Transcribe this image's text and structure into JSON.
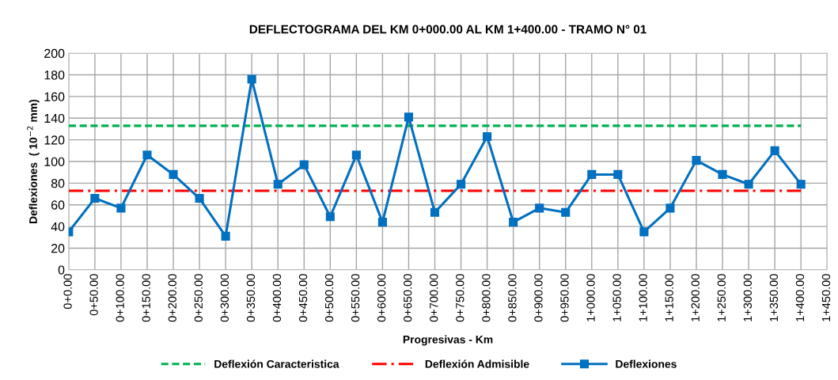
{
  "chart_data": {
    "type": "line",
    "title": "DEFLECTOGRAMA DEL KM 0+000.00 AL KM 1+400.00 - TRAMO N° 01",
    "xlabel": "Progresivas - Km",
    "ylabel": "Deflexiones  ( 10$^{−2}$ mm)",
    "categories": [
      "0+0.00",
      "0+50.00",
      "0+100.00",
      "0+150.00",
      "0+200.00",
      "0+250.00",
      "0+300.00",
      "0+350.00",
      "0+400.00",
      "0+450.00",
      "0+500.00",
      "0+550.00",
      "0+600.00",
      "0+650.00",
      "0+700.00",
      "0+750.00",
      "0+800.00",
      "0+850.00",
      "0+900.00",
      "0+950.00",
      "1+000.00",
      "1+050.00",
      "1+100.00",
      "1+150.00",
      "1+200.00",
      "1+250.00",
      "1+300.00",
      "1+350.00",
      "1+400.00",
      "1+450.00"
    ],
    "series": [
      {
        "name": "Deflexión Caracteristica",
        "color": "#00b050",
        "line_style": "dashed",
        "marker": "none",
        "values": [
          133,
          133,
          133,
          133,
          133,
          133,
          133,
          133,
          133,
          133,
          133,
          133,
          133,
          133,
          133,
          133,
          133,
          133,
          133,
          133,
          133,
          133,
          133,
          133,
          133,
          133,
          133,
          133,
          133,
          null
        ]
      },
      {
        "name": "Deflexión Admisible",
        "color": "#ff0000",
        "line_style": "dashdot",
        "marker": "none",
        "values": [
          73,
          73,
          73,
          73,
          73,
          73,
          73,
          73,
          73,
          73,
          73,
          73,
          73,
          73,
          73,
          73,
          73,
          73,
          73,
          73,
          73,
          73,
          73,
          73,
          73,
          73,
          73,
          73,
          73,
          null
        ]
      },
      {
        "name": "Deflexiones",
        "color": "#0070c0",
        "line_style": "solid",
        "marker": "square",
        "values": [
          35,
          66,
          57,
          106,
          88,
          66,
          31,
          176,
          79,
          97,
          49,
          106,
          44,
          141,
          53,
          79,
          123,
          44,
          57,
          53,
          88,
          88,
          35,
          57,
          101,
          88,
          79,
          110,
          79,
          null
        ]
      }
    ],
    "ylim": [
      0,
      200
    ],
    "yticks": [
      0,
      20,
      40,
      60,
      80,
      100,
      120,
      140,
      160,
      180,
      200
    ],
    "grid": true,
    "legend": "bottom"
  }
}
